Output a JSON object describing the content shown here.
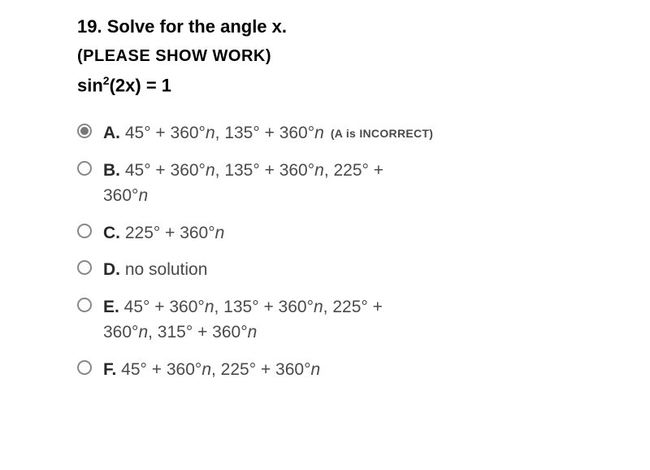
{
  "question": {
    "number": "19.",
    "title": "Solve for the angle x.",
    "instruction": "(PLEASE SHOW WORK)",
    "equation_plain": "sin²(2x) = 1"
  },
  "options": {
    "A": {
      "letter": "A.",
      "text": " 45° + 360°",
      "text2": ", 135° + 360°",
      "note": "(A is INCORRECT)",
      "selected": true
    },
    "B": {
      "letter": "B.",
      "text": " 45° + 360°",
      "text2": ", 135° + 360°",
      "text3": ", 225° +",
      "line2": "360°"
    },
    "C": {
      "letter": "C.",
      "text": " 225° + 360°"
    },
    "D": {
      "letter": "D.",
      "text": " no solution"
    },
    "E": {
      "letter": "E.",
      "text": " 45° + 360°",
      "text2": ", 135° + 360°",
      "text3": ", 225° +",
      "line2a": "360°",
      "line2b": ", 315° + 360°"
    },
    "F": {
      "letter": "F.",
      "text": " 45° + 360°",
      "text2": ", 225° + 360°"
    }
  },
  "n_var": "n",
  "colors": {
    "text_primary": "#000000",
    "text_secondary": "#4a4a4a",
    "radio_border": "#888888",
    "radio_fill": "#777777",
    "background": "#ffffff"
  },
  "typography": {
    "question_fontsize": 22,
    "instruction_fontsize": 20,
    "option_fontsize": 21,
    "note_fontsize": 14
  }
}
